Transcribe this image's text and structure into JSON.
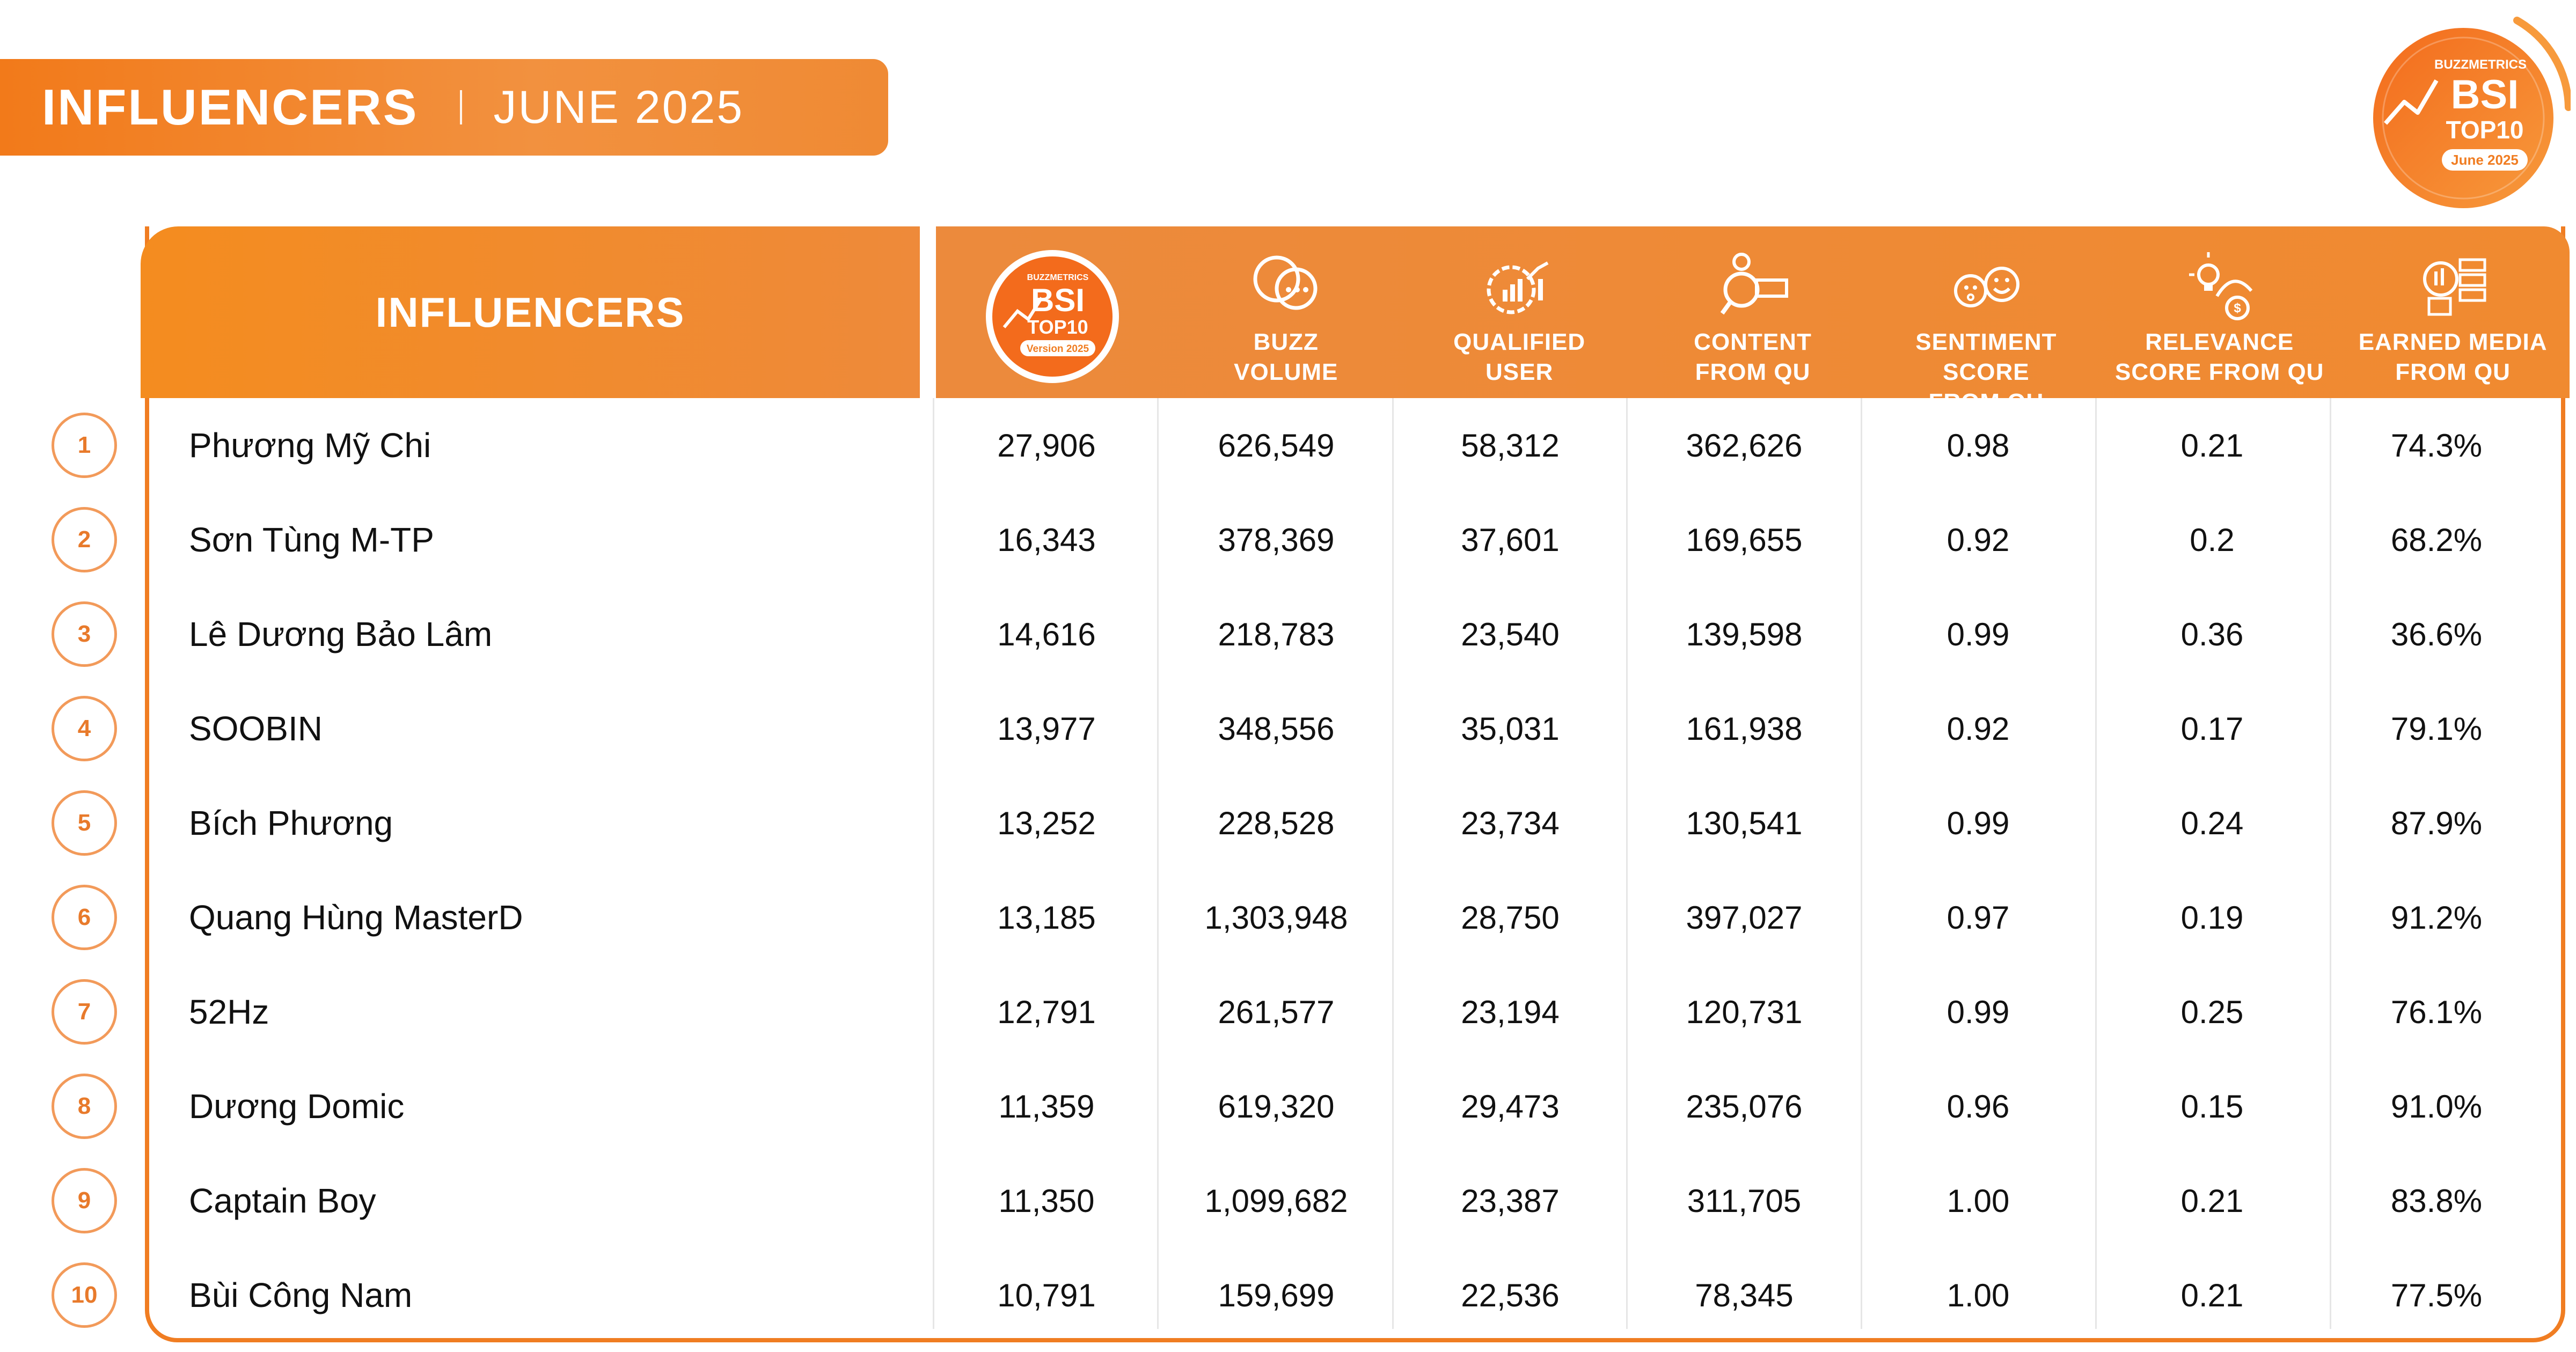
{
  "banner": {
    "title": "INFLUENCERS",
    "date": "JUNE 2025"
  },
  "logo": {
    "brand": "BUZZMETRICS",
    "line1": "BSI",
    "line2": "TOP10",
    "date": "June 2025",
    "icon": "bsi-top10-logo"
  },
  "table": {
    "name_header": "INFLUENCERS",
    "badge": {
      "brand": "BUZZMETRICS",
      "line1": "BSI",
      "line2": "TOP10",
      "version": "Version 2025",
      "icon": "bsi-top10-badge"
    },
    "columns": [
      {
        "label": "BUZZ\nVOLUME",
        "icon": "chat-bubbles-icon"
      },
      {
        "label": "QUALIFIED\nUSER",
        "icon": "gear-chart-icon"
      },
      {
        "label": "CONTENT\nFROM QU",
        "icon": "content-search-icon"
      },
      {
        "label": "SENTIMENT SCORE\nFROM QU",
        "icon": "emoji-faces-icon"
      },
      {
        "label": "RELEVANCE\nSCORE FROM QU",
        "icon": "idea-money-icon"
      },
      {
        "label": "EARNED MEDIA\nFROM QU",
        "icon": "media-server-icon"
      }
    ],
    "rows": [
      {
        "rank": "1",
        "name": "Phương Mỹ Chi",
        "bsi": "27,906",
        "buzz": "626,549",
        "qu": "58,312",
        "content": "362,626",
        "sentiment": "0.98",
        "relevance": "0.21",
        "earned": "74.3%"
      },
      {
        "rank": "2",
        "name": "Sơn Tùng M-TP",
        "bsi": "16,343",
        "buzz": "378,369",
        "qu": "37,601",
        "content": "169,655",
        "sentiment": "0.92",
        "relevance": "0.2",
        "earned": "68.2%"
      },
      {
        "rank": "3",
        "name": "Lê Dương Bảo Lâm",
        "bsi": "14,616",
        "buzz": "218,783",
        "qu": "23,540",
        "content": "139,598",
        "sentiment": "0.99",
        "relevance": "0.36",
        "earned": "36.6%"
      },
      {
        "rank": "4",
        "name": "SOOBIN",
        "bsi": "13,977",
        "buzz": "348,556",
        "qu": "35,031",
        "content": "161,938",
        "sentiment": "0.92",
        "relevance": "0.17",
        "earned": "79.1%"
      },
      {
        "rank": "5",
        "name": "Bích Phương",
        "bsi": "13,252",
        "buzz": "228,528",
        "qu": "23,734",
        "content": "130,541",
        "sentiment": "0.99",
        "relevance": "0.24",
        "earned": "87.9%"
      },
      {
        "rank": "6",
        "name": "Quang Hùng MasterD",
        "bsi": "13,185",
        "buzz": "1,303,948",
        "qu": "28,750",
        "content": "397,027",
        "sentiment": "0.97",
        "relevance": "0.19",
        "earned": "91.2%"
      },
      {
        "rank": "7",
        "name": "52Hz",
        "bsi": "12,791",
        "buzz": "261,577",
        "qu": "23,194",
        "content": "120,731",
        "sentiment": "0.99",
        "relevance": "0.25",
        "earned": "76.1%"
      },
      {
        "rank": "8",
        "name": "Dương Domic",
        "bsi": "11,359",
        "buzz": "619,320",
        "qu": "29,473",
        "content": "235,076",
        "sentiment": "0.96",
        "relevance": "0.15",
        "earned": "91.0%"
      },
      {
        "rank": "9",
        "name": "Captain Boy",
        "bsi": "11,350",
        "buzz": "1,099,682",
        "qu": "23,387",
        "content": "311,705",
        "sentiment": "1.00",
        "relevance": "0.21",
        "earned": "83.8%"
      },
      {
        "rank": "10",
        "name": "Bùi Công Nam",
        "bsi": "10,791",
        "buzz": "159,699",
        "qu": "22,536",
        "content": "78,345",
        "sentiment": "1.00",
        "relevance": "0.21",
        "earned": "77.5%"
      }
    ]
  },
  "colors": {
    "accent": "#f07d22",
    "accent_light": "#f29a5a",
    "text": "#111111",
    "header_text": "#ffffff"
  }
}
